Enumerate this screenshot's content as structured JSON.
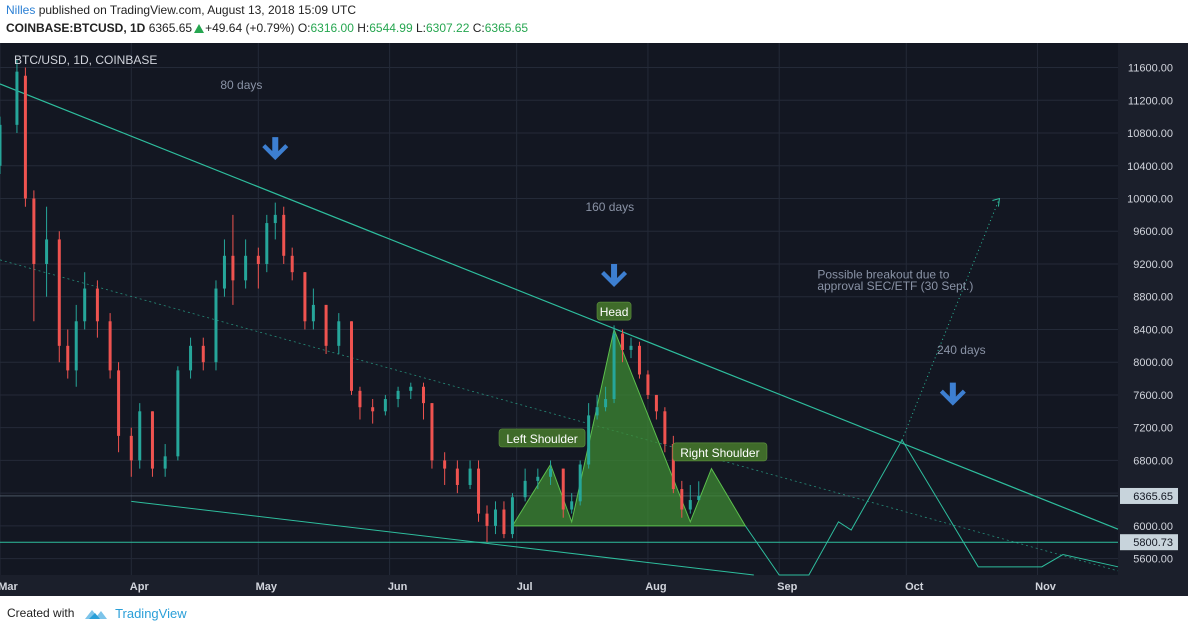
{
  "header": {
    "author": "Nilles",
    "published": "published on TradingView.com, August 13, 2018 15:09 UTC",
    "symbol": "COINBASE:BTCUSD, 1D",
    "last": "6365.65",
    "change": "+49.64 (+0.79%)",
    "open_label": "O:",
    "open": "6316.00",
    "high_label": "H:",
    "high": "6544.99",
    "low_label": "L:",
    "low": "6307.22",
    "close_label": "C:",
    "close": "6365.65"
  },
  "footer": {
    "created_with": "Created with",
    "brand": "TradingView"
  },
  "colors": {
    "background": "#131722",
    "up": "#26a69a",
    "down": "#ef5350",
    "trendline": "#2ebd9d",
    "arrow": "#3d7fd1",
    "label_bg": "#3f6b2a",
    "pattern_fill": "#3e8a33",
    "axis_bg": "#1b1f2b",
    "text": "#8a93a6"
  },
  "chart_data": {
    "type": "candlestick",
    "title": "BTC/USD, 1D, COINBASE",
    "xlabel": "",
    "ylabel": "",
    "x_ticks": [
      "Mar",
      "Apr",
      "May",
      "Jun",
      "Jul",
      "Aug",
      "Sep",
      "Oct",
      "Nov"
    ],
    "y_ticks": [
      "5600.00",
      "6000.00",
      "6400.00",
      "6800.00",
      "7200.00",
      "7600.00",
      "8000.00",
      "8400.00",
      "8800.00",
      "9200.00",
      "9600.00",
      "10000.00",
      "10400.00",
      "10800.00",
      "11200.00",
      "11600.00"
    ],
    "ylim": [
      5400,
      11900
    ],
    "x_range": [
      "2018-03-01",
      "2018-11-20"
    ],
    "grid": true,
    "series": [
      {
        "x": "2018-03-01",
        "o": 10400,
        "h": 11000,
        "l": 10300,
        "c": 10900
      },
      {
        "x": "2018-03-05",
        "o": 10900,
        "h": 11700,
        "l": 10800,
        "c": 11550
      },
      {
        "x": "2018-03-07",
        "o": 11500,
        "h": 11600,
        "l": 9900,
        "c": 10000
      },
      {
        "x": "2018-03-09",
        "o": 10000,
        "h": 10100,
        "l": 8500,
        "c": 9200
      },
      {
        "x": "2018-03-12",
        "o": 9200,
        "h": 9900,
        "l": 8800,
        "c": 9500
      },
      {
        "x": "2018-03-15",
        "o": 9500,
        "h": 9600,
        "l": 8000,
        "c": 8200
      },
      {
        "x": "2018-03-17",
        "o": 8200,
        "h": 8400,
        "l": 7800,
        "c": 7900
      },
      {
        "x": "2018-03-19",
        "o": 7900,
        "h": 8700,
        "l": 7700,
        "c": 8500
      },
      {
        "x": "2018-03-21",
        "o": 8500,
        "h": 9100,
        "l": 8400,
        "c": 8900
      },
      {
        "x": "2018-03-24",
        "o": 8900,
        "h": 9000,
        "l": 8300,
        "c": 8500
      },
      {
        "x": "2018-03-27",
        "o": 8500,
        "h": 8600,
        "l": 7800,
        "c": 7900
      },
      {
        "x": "2018-03-29",
        "o": 7900,
        "h": 8000,
        "l": 6900,
        "c": 7100
      },
      {
        "x": "2018-04-01",
        "o": 7100,
        "h": 7200,
        "l": 6600,
        "c": 6800
      },
      {
        "x": "2018-04-03",
        "o": 6800,
        "h": 7500,
        "l": 6700,
        "c": 7400
      },
      {
        "x": "2018-04-06",
        "o": 7400,
        "h": 7400,
        "l": 6600,
        "c": 6700
      },
      {
        "x": "2018-04-09",
        "o": 6700,
        "h": 7000,
        "l": 6600,
        "c": 6850
      },
      {
        "x": "2018-04-12",
        "o": 6850,
        "h": 7950,
        "l": 6800,
        "c": 7900
      },
      {
        "x": "2018-04-15",
        "o": 7900,
        "h": 8300,
        "l": 7800,
        "c": 8200
      },
      {
        "x": "2018-04-18",
        "o": 8200,
        "h": 8300,
        "l": 7900,
        "c": 8000
      },
      {
        "x": "2018-04-21",
        "o": 8000,
        "h": 9000,
        "l": 7900,
        "c": 8900
      },
      {
        "x": "2018-04-23",
        "o": 8900,
        "h": 9500,
        "l": 8800,
        "c": 9300
      },
      {
        "x": "2018-04-25",
        "o": 9300,
        "h": 9800,
        "l": 8700,
        "c": 9000
      },
      {
        "x": "2018-04-28",
        "o": 9000,
        "h": 9500,
        "l": 8900,
        "c": 9300
      },
      {
        "x": "2018-05-01",
        "o": 9300,
        "h": 9400,
        "l": 8900,
        "c": 9200
      },
      {
        "x": "2018-05-03",
        "o": 9200,
        "h": 9800,
        "l": 9100,
        "c": 9700
      },
      {
        "x": "2018-05-05",
        "o": 9700,
        "h": 9950,
        "l": 9500,
        "c": 9800
      },
      {
        "x": "2018-05-07",
        "o": 9800,
        "h": 9900,
        "l": 9200,
        "c": 9300
      },
      {
        "x": "2018-05-09",
        "o": 9300,
        "h": 9400,
        "l": 9000,
        "c": 9100
      },
      {
        "x": "2018-05-12",
        "o": 9100,
        "h": 9100,
        "l": 8400,
        "c": 8500
      },
      {
        "x": "2018-05-14",
        "o": 8500,
        "h": 8900,
        "l": 8400,
        "c": 8700
      },
      {
        "x": "2018-05-17",
        "o": 8700,
        "h": 8700,
        "l": 8100,
        "c": 8200
      },
      {
        "x": "2018-05-20",
        "o": 8200,
        "h": 8600,
        "l": 8100,
        "c": 8500
      },
      {
        "x": "2018-05-23",
        "o": 8500,
        "h": 8500,
        "l": 7600,
        "c": 7650
      },
      {
        "x": "2018-05-25",
        "o": 7650,
        "h": 7700,
        "l": 7300,
        "c": 7450
      },
      {
        "x": "2018-05-28",
        "o": 7450,
        "h": 7550,
        "l": 7250,
        "c": 7400
      },
      {
        "x": "2018-05-31",
        "o": 7400,
        "h": 7600,
        "l": 7350,
        "c": 7550
      },
      {
        "x": "2018-06-03",
        "o": 7550,
        "h": 7700,
        "l": 7450,
        "c": 7650
      },
      {
        "x": "2018-06-06",
        "o": 7650,
        "h": 7750,
        "l": 7550,
        "c": 7700
      },
      {
        "x": "2018-06-09",
        "o": 7700,
        "h": 7750,
        "l": 7300,
        "c": 7500
      },
      {
        "x": "2018-06-11",
        "o": 7500,
        "h": 7500,
        "l": 6700,
        "c": 6800
      },
      {
        "x": "2018-06-14",
        "o": 6800,
        "h": 6900,
        "l": 6500,
        "c": 6700
      },
      {
        "x": "2018-06-17",
        "o": 6700,
        "h": 6800,
        "l": 6400,
        "c": 6500
      },
      {
        "x": "2018-06-20",
        "o": 6500,
        "h": 6800,
        "l": 6450,
        "c": 6700
      },
      {
        "x": "2018-06-22",
        "o": 6700,
        "h": 6800,
        "l": 6050,
        "c": 6150
      },
      {
        "x": "2018-06-24",
        "o": 6150,
        "h": 6250,
        "l": 5800,
        "c": 6000
      },
      {
        "x": "2018-06-26",
        "o": 6000,
        "h": 6300,
        "l": 5900,
        "c": 6200
      },
      {
        "x": "2018-06-28",
        "o": 6200,
        "h": 6300,
        "l": 5850,
        "c": 5900
      },
      {
        "x": "2018-06-30",
        "o": 5900,
        "h": 6400,
        "l": 5850,
        "c": 6350
      },
      {
        "x": "2018-07-03",
        "o": 6350,
        "h": 6700,
        "l": 6300,
        "c": 6550
      },
      {
        "x": "2018-07-06",
        "o": 6550,
        "h": 6700,
        "l": 6450,
        "c": 6600
      },
      {
        "x": "2018-07-09",
        "o": 6600,
        "h": 6800,
        "l": 6500,
        "c": 6700
      },
      {
        "x": "2018-07-12",
        "o": 6700,
        "h": 6700,
        "l": 6100,
        "c": 6200
      },
      {
        "x": "2018-07-14",
        "o": 6200,
        "h": 6400,
        "l": 6150,
        "c": 6300
      },
      {
        "x": "2018-07-16",
        "o": 6300,
        "h": 6800,
        "l": 6250,
        "c": 6750
      },
      {
        "x": "2018-07-18",
        "o": 6750,
        "h": 7500,
        "l": 6700,
        "c": 7350
      },
      {
        "x": "2018-07-20",
        "o": 7350,
        "h": 7600,
        "l": 7300,
        "c": 7450
      },
      {
        "x": "2018-07-22",
        "o": 7450,
        "h": 7700,
        "l": 7400,
        "c": 7550
      },
      {
        "x": "2018-07-24",
        "o": 7550,
        "h": 8450,
        "l": 7500,
        "c": 8350
      },
      {
        "x": "2018-07-26",
        "o": 8350,
        "h": 8400,
        "l": 8000,
        "c": 8150
      },
      {
        "x": "2018-07-28",
        "o": 8150,
        "h": 8300,
        "l": 8050,
        "c": 8200
      },
      {
        "x": "2018-07-30",
        "o": 8200,
        "h": 8250,
        "l": 7800,
        "c": 7850
      },
      {
        "x": "2018-08-01",
        "o": 7850,
        "h": 7900,
        "l": 7550,
        "c": 7600
      },
      {
        "x": "2018-08-03",
        "o": 7600,
        "h": 7600,
        "l": 7300,
        "c": 7400
      },
      {
        "x": "2018-08-05",
        "o": 7400,
        "h": 7450,
        "l": 6900,
        "c": 7000
      },
      {
        "x": "2018-08-07",
        "o": 7000,
        "h": 7100,
        "l": 6400,
        "c": 6450
      },
      {
        "x": "2018-08-09",
        "o": 6450,
        "h": 6550,
        "l": 6100,
        "c": 6200
      },
      {
        "x": "2018-08-11",
        "o": 6200,
        "h": 6500,
        "l": 6150,
        "c": 6316
      },
      {
        "x": "2018-08-13",
        "o": 6316,
        "h": 6545,
        "l": 6307,
        "c": 6366
      }
    ],
    "current_price": "6365.65",
    "support_price": "5800.73",
    "annotations": [
      {
        "text": "80 days"
      },
      {
        "text": "160 days"
      },
      {
        "text": "240 days"
      },
      {
        "text": "Head"
      },
      {
        "text": "Left Shoulder"
      },
      {
        "text": "Right Shoulder"
      },
      {
        "text": "Possible breakout due to"
      },
      {
        "text": "approval SEC/ETF (30 Sept.)"
      }
    ]
  }
}
